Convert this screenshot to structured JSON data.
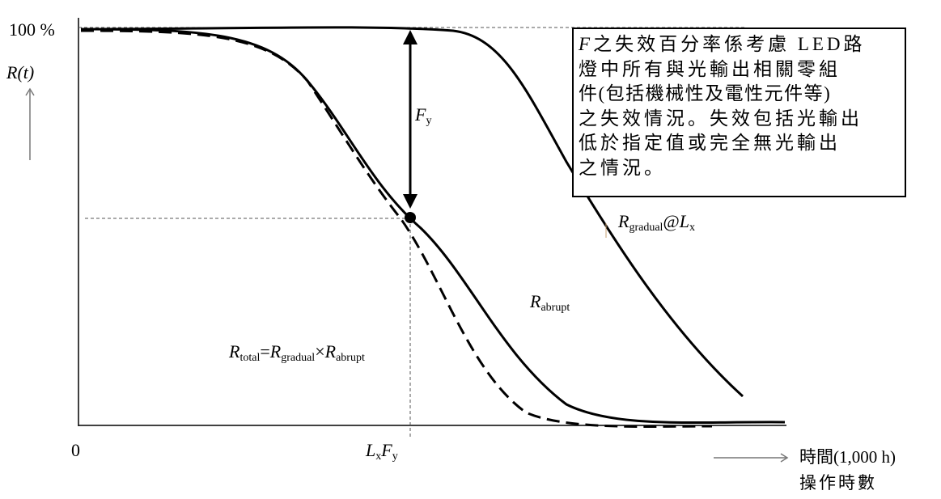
{
  "axis": {
    "y_top_label": "100 %",
    "y_axis_label": "R(t)",
    "origin_label": "0",
    "x_label_line1": "時間(1,000 h)",
    "x_label_line2": "操作時數"
  },
  "annotations": {
    "fy_arrow": {
      "var": "F",
      "sub": "y"
    },
    "lx_fy": {
      "var1": "L",
      "sub1": "x",
      "var2": "F",
      "sub2": "y"
    },
    "r_gradual": {
      "var": "R",
      "sub": "gradual",
      "at": "@",
      "var2": "L",
      "sub2": "x"
    },
    "r_abrupt": {
      "var": "R",
      "sub": "abrupt"
    },
    "r_total": {
      "var": "R",
      "sub": "total",
      "eq": "=",
      "var2": "R",
      "sub2": "gradual",
      "times": "×",
      "var3": "R",
      "sub3": "abrupt"
    }
  },
  "note_box": {
    "lead": "F",
    "lines": [
      "之失效百分率係考慮 LED路",
      "燈中所有與光輸出相關零組",
      "件(包括機械性及電性元件等)",
      "之失效情況。失效包括光輸出",
      "低於指定值或完全無光輸出",
      "之情況。"
    ]
  },
  "curves": [
    {
      "name": "R_gradual@L_x",
      "style": "solid"
    },
    {
      "name": "R_abrupt",
      "style": "solid"
    },
    {
      "name": "R_total",
      "style": "dashed"
    }
  ]
}
